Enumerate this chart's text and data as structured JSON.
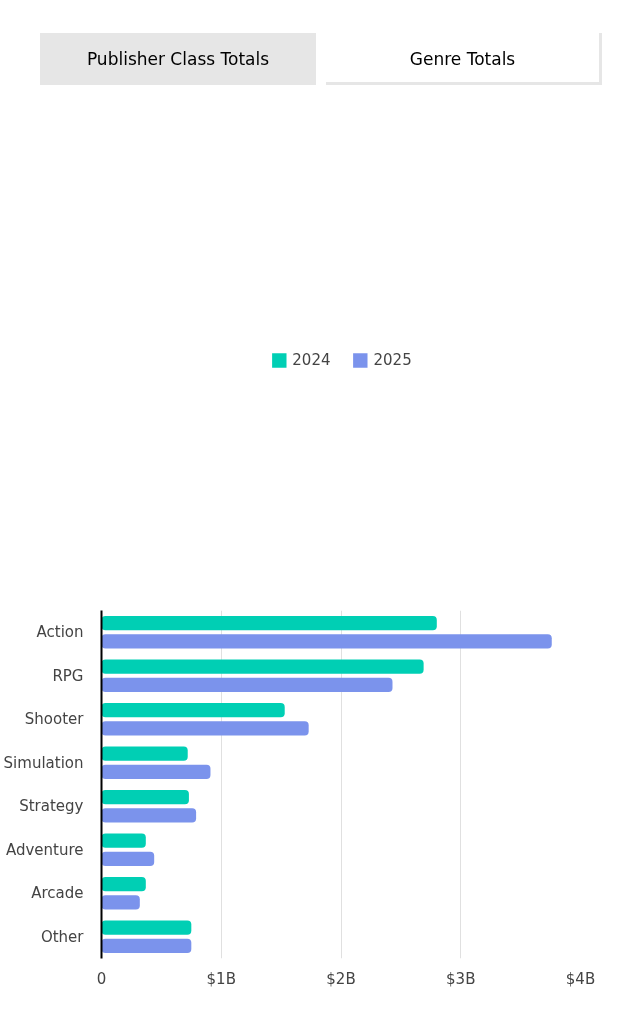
{
  "chart_data": {
    "type": "bar",
    "orientation": "horizontal",
    "annotations": [
      "Publisher Class Totals",
      "Genre Totals"
    ],
    "categories": [
      "Action",
      "RPG",
      "Shooter",
      "Simulation",
      "Strategy",
      "Adventure",
      "Arcade",
      "Other"
    ],
    "series": [
      {
        "name": "2024",
        "color": "#00cfb4",
        "values": [
          2.8,
          2.69,
          1.53,
          0.72,
          0.73,
          0.37,
          0.37,
          0.75
        ]
      },
      {
        "name": "2025",
        "color": "#7b93ec",
        "values": [
          3.76,
          2.43,
          1.73,
          0.91,
          0.79,
          0.44,
          0.32,
          0.75
        ]
      }
    ],
    "xlim": [
      0,
      4
    ],
    "xticks": [
      {
        "value": 0,
        "label": "0"
      },
      {
        "value": 1,
        "label": "$1B"
      },
      {
        "value": 2,
        "label": "$2B"
      },
      {
        "value": 3,
        "label": "$3B"
      },
      {
        "value": 4,
        "label": "$4B"
      }
    ],
    "grid": "x",
    "legend": "top"
  }
}
